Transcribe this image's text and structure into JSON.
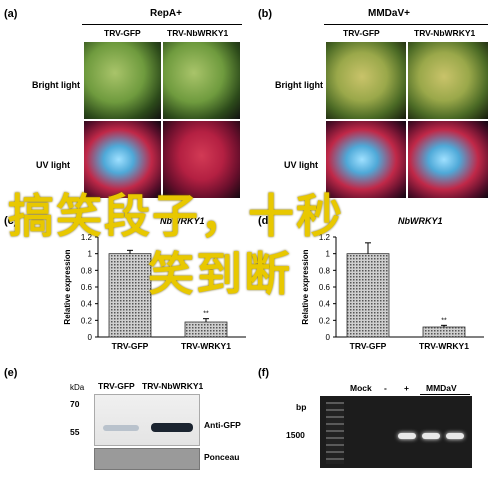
{
  "panels": {
    "a": {
      "label": "(a)",
      "treatment": "RepA+",
      "col1": "TRV-GFP",
      "col2": "TRV-NbWRKY1",
      "row1": "Bright light",
      "row2": "UV light"
    },
    "b": {
      "label": "(b)",
      "treatment": "MMDaV+",
      "col1": "TRV-GFP",
      "col2": "TRV-NbWRKY1",
      "row1": "Bright light",
      "row2": "UV light"
    },
    "c": {
      "label": "(c)",
      "treatment_partial": "NbWRKY1",
      "significance": "**"
    },
    "d": {
      "label": "(d)",
      "treatment_partial": "NbWRKY1",
      "significance": "**"
    },
    "e": {
      "label": "(e)",
      "kDa": "kDa",
      "lanes": [
        "TRV-GFP",
        "TRV-NbWRKY1"
      ],
      "marker_70": "70",
      "marker_55": "55",
      "blot_label": "Anti-GFP",
      "stain_label": "Ponceau"
    },
    "f": {
      "label": "(f)",
      "bp": "bp",
      "marker": "1500",
      "lanes": [
        "Mock",
        "-",
        "+",
        "MMDaV"
      ]
    }
  },
  "chart_data": [
    {
      "type": "bar",
      "panel": "c",
      "categories": [
        "TRV-GFP",
        "TRV-WRKY1"
      ],
      "values": [
        1.0,
        0.18
      ],
      "errors": [
        0.04,
        0.04
      ],
      "ylabel": "Relative expression",
      "ylim": [
        0,
        1.2
      ],
      "yticks": [
        "0",
        "0.2",
        "0.4",
        "0.6",
        "0.8",
        "1",
        "1.2"
      ]
    },
    {
      "type": "bar",
      "panel": "d",
      "categories": [
        "TRV-GFP",
        "TRV-WRKY1"
      ],
      "values": [
        1.0,
        0.12
      ],
      "errors": [
        0.13,
        0.02
      ],
      "ylabel": "Relative expression",
      "ylim": [
        0,
        1.2
      ],
      "yticks": [
        "0",
        "0.2",
        "0.4",
        "0.6",
        "0.8",
        "1",
        "1.2"
      ]
    }
  ],
  "overlay_text": {
    "line1": "搞笑段子，十秒",
    "line2": "笑到断"
  }
}
